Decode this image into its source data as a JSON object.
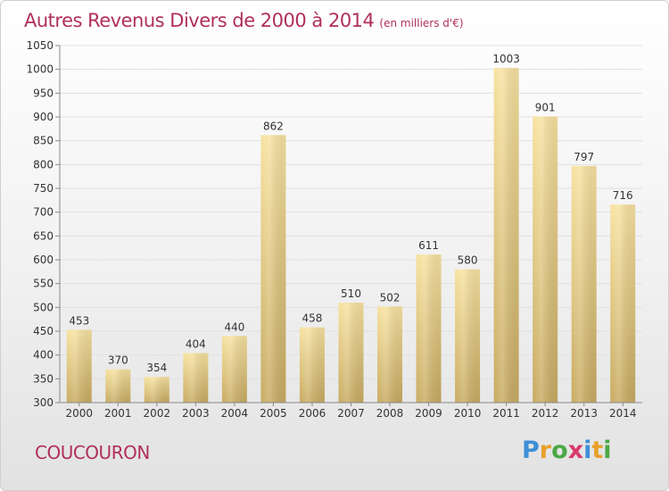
{
  "page": {
    "title": "Autres Revenus Divers de 2000 à 2014",
    "title_unit": "(en milliers d'€)",
    "commune": "COUCOURON",
    "logo_letters": [
      "P",
      "r",
      "o",
      "x",
      "i",
      "t",
      "i"
    ],
    "logo_colors": [
      "#3d8fd6",
      "#e8a12a",
      "#4aa845",
      "#d83a6b",
      "#3d8fd6",
      "#e8a12a",
      "#4aa845"
    ],
    "title_color": "#b0305a"
  },
  "chart_data": {
    "type": "bar",
    "categories": [
      "2000",
      "2001",
      "2002",
      "2003",
      "2004",
      "2005",
      "2006",
      "2007",
      "2008",
      "2009",
      "2010",
      "2011",
      "2012",
      "2013",
      "2014"
    ],
    "values": [
      453,
      370,
      354,
      404,
      440,
      862,
      458,
      510,
      502,
      611,
      580,
      1003,
      901,
      797,
      716
    ],
    "ylim": [
      300,
      1050
    ],
    "yticks": [
      300,
      350,
      400,
      450,
      500,
      550,
      600,
      650,
      700,
      750,
      800,
      850,
      900,
      950,
      1000,
      1050
    ],
    "grid": true,
    "bar_color_light": "#f7e2a0",
    "bar_color_dark": "#c8ab62",
    "grid_color": "#e0e0e0"
  }
}
